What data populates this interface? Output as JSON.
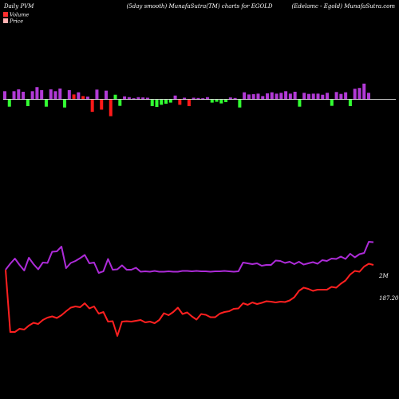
{
  "header": {
    "left": "Daily PVM",
    "center": "(5day smooth) MunafaSutra(TM) charts for EGOLD",
    "right": "(Edelamc - Egold) MunafaSutra.com"
  },
  "legend": [
    {
      "label": "Volume",
      "color": "#ff2e2e"
    },
    {
      "label": "Price",
      "color": "#ffb0b0"
    }
  ],
  "colors": {
    "background": "#000000",
    "zero_line": "#ffffff",
    "bar_up": "#b23ad6",
    "bar_down": "#ff1a1a",
    "bar_green": "#33ff33",
    "volume_line": "#ad2bd8",
    "price_line": "#ff2020"
  },
  "chart_data": [
    {
      "type": "bar",
      "title": "PVM",
      "values": [
        0.3,
        -0.27,
        0.3,
        0.37,
        0.28,
        -0.25,
        0.3,
        0.45,
        0.34,
        -0.27,
        0.37,
        0.3,
        0.4,
        -0.3,
        0.34,
        0.18,
        0.26,
        0.12,
        0.1,
        -0.46,
        0.36,
        -0.38,
        0.32,
        -0.62,
        0.17,
        -0.24,
        0.11,
        0.08,
        0.04,
        0.08,
        0.07,
        0.06,
        -0.25,
        -0.28,
        -0.2,
        -0.16,
        -0.12,
        0.14,
        -0.2,
        0.06,
        -0.25,
        0.06,
        0.05,
        0.04,
        0.08,
        -0.12,
        -0.09,
        -0.15,
        -0.1,
        0.07,
        0.05,
        -0.3,
        0.26,
        0.18,
        0.19,
        0.21,
        0.12,
        0.22,
        0.26,
        0.21,
        0.24,
        0.3,
        0.21,
        0.28,
        -0.27,
        0.24,
        0.2,
        0.21,
        0.21,
        0.17,
        0.24,
        -0.24,
        0.27,
        0.2,
        0.26,
        -0.25,
        0.39,
        0.42,
        0.58,
        0.24
      ],
      "colors_code": [
        "u",
        "g",
        "u",
        "u",
        "u",
        "g",
        "u",
        "u",
        "u",
        "g",
        "u",
        "u",
        "u",
        "g",
        "u",
        "r",
        "u",
        "r",
        "u",
        "r",
        "u",
        "r",
        "u",
        "r",
        "g",
        "g",
        "u",
        "u",
        "u",
        "u",
        "u",
        "u",
        "g",
        "g",
        "g",
        "g",
        "g",
        "u",
        "r",
        "u",
        "r",
        "u",
        "u",
        "u",
        "u",
        "g",
        "g",
        "g",
        "g",
        "u",
        "u",
        "g",
        "u",
        "u",
        "u",
        "u",
        "u",
        "u",
        "u",
        "u",
        "u",
        "u",
        "u",
        "u",
        "g",
        "u",
        "u",
        "u",
        "u",
        "u",
        "u",
        "g",
        "u",
        "u",
        "u",
        "g",
        "u",
        "u",
        "u",
        "u"
      ],
      "ylim": [
        -1,
        1
      ]
    },
    {
      "type": "line",
      "series": [
        {
          "name": "Volume",
          "end_label": "2M",
          "values": [
            3.7,
            4.45,
            5.1,
            4.3,
            3.6,
            5.2,
            4.4,
            3.75,
            4.6,
            4.55,
            5.95,
            6.0,
            6.6,
            3.9,
            4.55,
            4.8,
            5.15,
            5.55,
            4.5,
            4.6,
            3.3,
            3.5,
            5.05,
            3.7,
            3.75,
            4.25,
            3.7,
            3.7,
            3.95,
            3.45,
            3.5,
            3.45,
            3.55,
            3.45,
            3.45,
            3.5,
            3.45,
            3.45,
            3.55,
            3.55,
            3.5,
            3.55,
            3.5,
            3.5,
            3.45,
            3.5,
            3.5,
            3.55,
            3.5,
            3.45,
            3.5,
            4.6,
            4.5,
            4.4,
            4.5,
            4.2,
            4.3,
            4.3,
            4.85,
            4.8,
            4.55,
            4.7,
            4.4,
            4.7,
            4.35,
            4.5,
            4.65,
            4.45,
            4.9,
            4.8,
            5.1,
            5.05,
            5.35,
            5.05,
            5.7,
            5.25,
            5.65,
            5.8,
            7.2,
            7.15
          ]
        },
        {
          "name": "Price",
          "end_label": "187.20",
          "values": [
            3.7,
            -4.1,
            -4.1,
            -3.7,
            -3.8,
            -3.3,
            -2.95,
            -3.1,
            -2.6,
            -2.3,
            -2.15,
            -2.35,
            -2.0,
            -1.5,
            -1.05,
            -0.9,
            -1.0,
            -0.5,
            -1.15,
            -0.9,
            -1.8,
            -1.6,
            -2.8,
            -2.75,
            -4.6,
            -2.8,
            -2.75,
            -2.8,
            -2.7,
            -2.6,
            -2.9,
            -2.8,
            -3.0,
            -2.6,
            -1.75,
            -2.0,
            -1.6,
            -1.05,
            -1.85,
            -1.65,
            -2.15,
            -2.55,
            -1.85,
            -1.95,
            -2.25,
            -2.25,
            -1.8,
            -1.6,
            -1.5,
            -1.2,
            -1.15,
            -0.5,
            -0.7,
            -0.4,
            -0.6,
            -0.45,
            -0.25,
            -0.3,
            -0.4,
            -0.3,
            -0.35,
            -0.15,
            0.25,
            1.05,
            1.45,
            1.3,
            1.05,
            1.2,
            1.2,
            1.2,
            1.55,
            1.45,
            1.95,
            2.35,
            3.1,
            3.55,
            3.45,
            4.1,
            4.45,
            4.3
          ]
        }
      ]
    }
  ]
}
